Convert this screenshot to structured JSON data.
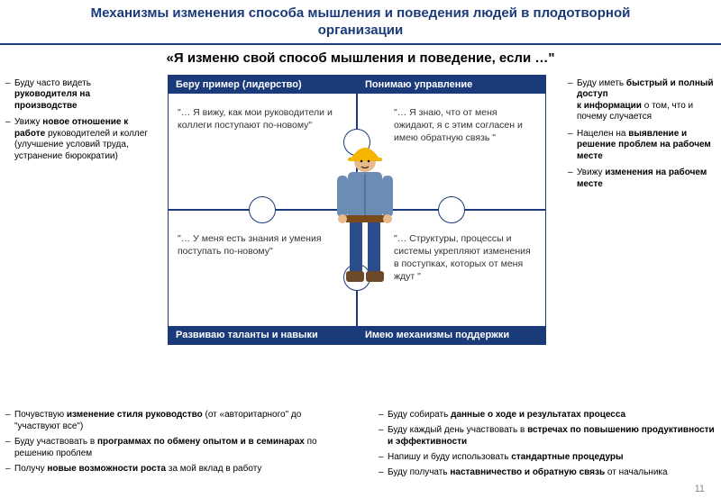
{
  "colors": {
    "brand": "#1b3a7a",
    "bg": "#ffffff",
    "text": "#000000",
    "muted": "#888888"
  },
  "title": "Механизмы изменения способа мышления и поведения людей в плодотворной организации",
  "subtitle": "«Я изменю свой способ мышления и поведение, если …\"",
  "left_side": [
    {
      "pre": "Буду часто видеть ",
      "bold": "руководителя на производстве",
      "post": ""
    },
    {
      "pre": "Увижу ",
      "bold": "новое отношение к работе",
      "post": " руководителей и коллег\n   (улучшение условий труда, устранение бюрократии)"
    }
  ],
  "right_side": [
    {
      "pre": "Буду иметь ",
      "bold": "быстрый и полный доступ\n   к информации",
      "post": " о том, что и почему случается"
    },
    {
      "pre": "Нацелен на ",
      "bold": "выявление и решение проблем на рабочем месте",
      "post": ""
    },
    {
      "pre": "Увижу ",
      "bold": "изменения на рабочем месте",
      "post": ""
    }
  ],
  "puzzle": {
    "tl": {
      "header": "Беру пример (лидерство)",
      "body": "\"… Я вижу, как мои руководители и коллеги поступают по-новому\""
    },
    "tr": {
      "header": "Понимаю управление",
      "body": "\"… Я знаю, что от меня ожидают, я с этим согласен и имею обратную связь \""
    },
    "bl": {
      "header": "Развиваю таланты и навыки",
      "body": "\"… У меня есть знания и умения поступать по-новому\""
    },
    "br": {
      "header": "Имею механизмы поддержки",
      "body": "\"… Структуры, процессы и системы укрепляют изменения в поступках, которых от меня ждут \""
    }
  },
  "bottom_left": [
    {
      "pre": "Почувствую ",
      "bold": "изменение стиля руководство",
      "post": " (от «авторитарного\" до \"участвуют все\")"
    },
    {
      "pre": "Буду участвовать в ",
      "bold": "программах по обмену опытом и в семинарах",
      "post": " по решению проблем"
    },
    {
      "pre": "Получу ",
      "bold": "новые возможности роста",
      "post": " за мой вклад в работу"
    }
  ],
  "bottom_right": [
    {
      "pre": "Буду собирать ",
      "bold": "данные о ходе и результатах процесса",
      "post": ""
    },
    {
      "pre": "Буду каждый день участвовать в ",
      "bold": "встречах по повышению продуктивности и эффективности",
      "post": ""
    },
    {
      "pre": "Напишу и буду использовать ",
      "bold": "стандартные процедуры",
      "post": ""
    },
    {
      "pre": "Буду получать ",
      "bold": "наставничество и обратную связь",
      "post": " от начальника"
    }
  ],
  "page_number": "11",
  "worker": {
    "helmet": "#f5b400",
    "shirt": "#6b8db3",
    "pants": "#2b4d8b",
    "boots": "#6b4a2a",
    "skin": "#e8b98b",
    "belt": "#7a4a1a"
  }
}
